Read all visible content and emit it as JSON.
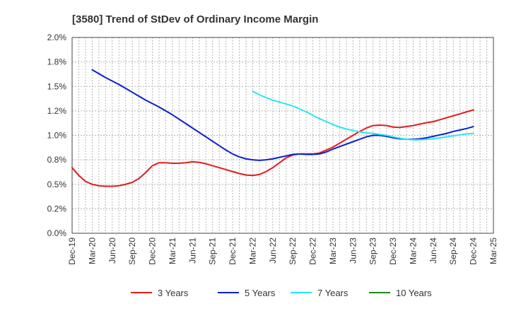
{
  "chart_data": {
    "type": "line",
    "title": "[3580]  Trend of StDev of Ordinary Income Margin",
    "xlabel": "",
    "ylabel": "",
    "x_tick_labels": [
      "Dec-19",
      "Mar-20",
      "Jun-20",
      "Sep-20",
      "Dec-20",
      "Mar-21",
      "Jun-21",
      "Sep-21",
      "Dec-21",
      "Mar-22",
      "Jun-22",
      "Sep-22",
      "Dec-22",
      "Mar-23",
      "Jun-23",
      "Sep-23",
      "Dec-23",
      "Mar-24",
      "Jun-24",
      "Sep-24",
      "Dec-24",
      "Mar-25"
    ],
    "y_tick_labels": [
      "0.0%",
      "0.2%",
      "0.5%",
      "0.8%",
      "1.0%",
      "1.2%",
      "1.5%",
      "1.8%",
      "2.0%"
    ],
    "ylim": [
      0,
      2.0
    ],
    "grid": true,
    "legend_position": "bottom",
    "series": [
      {
        "name": "3 Years",
        "color": "#e31a1c",
        "points": [
          [
            "Dec-19",
            0.67
          ],
          [
            "Jan-20",
            0.59
          ],
          [
            "Feb-20",
            0.53
          ],
          [
            "Mar-20",
            0.5
          ],
          [
            "Apr-20",
            0.485
          ],
          [
            "May-20",
            0.48
          ],
          [
            "Jun-20",
            0.48
          ],
          [
            "Jul-20",
            0.485
          ],
          [
            "Aug-20",
            0.5
          ],
          [
            "Sep-20",
            0.52
          ],
          [
            "Oct-20",
            0.56
          ],
          [
            "Nov-20",
            0.62
          ],
          [
            "Dec-20",
            0.69
          ],
          [
            "Jan-21",
            0.72
          ],
          [
            "Feb-21",
            0.72
          ],
          [
            "Mar-21",
            0.715
          ],
          [
            "Apr-21",
            0.715
          ],
          [
            "May-21",
            0.72
          ],
          [
            "Jun-21",
            0.73
          ],
          [
            "Jul-21",
            0.725
          ],
          [
            "Aug-21",
            0.71
          ],
          [
            "Sep-21",
            0.69
          ],
          [
            "Oct-21",
            0.67
          ],
          [
            "Nov-21",
            0.65
          ],
          [
            "Dec-21",
            0.63
          ],
          [
            "Jan-22",
            0.61
          ],
          [
            "Feb-22",
            0.595
          ],
          [
            "Mar-22",
            0.59
          ],
          [
            "Apr-22",
            0.6
          ],
          [
            "May-22",
            0.63
          ],
          [
            "Jun-22",
            0.67
          ],
          [
            "Jul-22",
            0.72
          ],
          [
            "Aug-22",
            0.77
          ],
          [
            "Sep-22",
            0.8
          ],
          [
            "Oct-22",
            0.81
          ],
          [
            "Nov-22",
            0.81
          ],
          [
            "Dec-22",
            0.81
          ],
          [
            "Jan-23",
            0.82
          ],
          [
            "Feb-23",
            0.85
          ],
          [
            "Mar-23",
            0.88
          ],
          [
            "Apr-23",
            0.92
          ],
          [
            "May-23",
            0.96
          ],
          [
            "Jun-23",
            1.0
          ],
          [
            "Jul-23",
            1.04
          ],
          [
            "Aug-23",
            1.075
          ],
          [
            "Sep-23",
            1.1
          ],
          [
            "Oct-23",
            1.105
          ],
          [
            "Nov-23",
            1.1
          ],
          [
            "Dec-23",
            1.085
          ],
          [
            "Jan-24",
            1.08
          ],
          [
            "Feb-24",
            1.09
          ],
          [
            "Mar-24",
            1.1
          ],
          [
            "Apr-24",
            1.115
          ],
          [
            "May-24",
            1.13
          ],
          [
            "Jun-24",
            1.14
          ],
          [
            "Jul-24",
            1.16
          ],
          [
            "Aug-24",
            1.18
          ],
          [
            "Sep-24",
            1.2
          ],
          [
            "Oct-24",
            1.22
          ],
          [
            "Nov-24",
            1.24
          ],
          [
            "Dec-24",
            1.26
          ]
        ]
      },
      {
        "name": "5 Years",
        "color": "#0a1fcc",
        "points": [
          [
            "Mar-20",
            1.67
          ],
          [
            "Apr-20",
            1.63
          ],
          [
            "May-20",
            1.59
          ],
          [
            "Jun-20",
            1.555
          ],
          [
            "Jul-20",
            1.52
          ],
          [
            "Aug-20",
            1.48
          ],
          [
            "Sep-20",
            1.44
          ],
          [
            "Oct-20",
            1.4
          ],
          [
            "Nov-20",
            1.36
          ],
          [
            "Dec-20",
            1.325
          ],
          [
            "Jan-21",
            1.29
          ],
          [
            "Feb-21",
            1.25
          ],
          [
            "Mar-21",
            1.21
          ],
          [
            "Apr-21",
            1.165
          ],
          [
            "May-21",
            1.12
          ],
          [
            "Jun-21",
            1.075
          ],
          [
            "Jul-21",
            1.03
          ],
          [
            "Aug-21",
            0.985
          ],
          [
            "Sep-21",
            0.94
          ],
          [
            "Oct-21",
            0.895
          ],
          [
            "Nov-21",
            0.85
          ],
          [
            "Dec-21",
            0.81
          ],
          [
            "Jan-22",
            0.78
          ],
          [
            "Feb-22",
            0.76
          ],
          [
            "Mar-22",
            0.75
          ],
          [
            "Apr-22",
            0.745
          ],
          [
            "May-22",
            0.75
          ],
          [
            "Jun-22",
            0.76
          ],
          [
            "Jul-22",
            0.775
          ],
          [
            "Aug-22",
            0.79
          ],
          [
            "Sep-22",
            0.805
          ],
          [
            "Oct-22",
            0.81
          ],
          [
            "Nov-22",
            0.805
          ],
          [
            "Dec-22",
            0.805
          ],
          [
            "Jan-23",
            0.81
          ],
          [
            "Feb-23",
            0.83
          ],
          [
            "Mar-23",
            0.86
          ],
          [
            "Apr-23",
            0.885
          ],
          [
            "May-23",
            0.91
          ],
          [
            "Jun-23",
            0.935
          ],
          [
            "Jul-23",
            0.96
          ],
          [
            "Aug-23",
            0.985
          ],
          [
            "Sep-23",
            1.0
          ],
          [
            "Oct-23",
            1.0
          ],
          [
            "Nov-23",
            0.99
          ],
          [
            "Dec-23",
            0.975
          ],
          [
            "Jan-24",
            0.965
          ],
          [
            "Feb-24",
            0.96
          ],
          [
            "Mar-24",
            0.96
          ],
          [
            "Apr-24",
            0.965
          ],
          [
            "May-24",
            0.975
          ],
          [
            "Jun-24",
            0.99
          ],
          [
            "Jul-24",
            1.005
          ],
          [
            "Aug-24",
            1.02
          ],
          [
            "Sep-24",
            1.04
          ],
          [
            "Oct-24",
            1.055
          ],
          [
            "Nov-24",
            1.07
          ],
          [
            "Dec-24",
            1.09
          ]
        ]
      },
      {
        "name": "7 Years",
        "color": "#27e6f0",
        "points": [
          [
            "Mar-22",
            1.45
          ],
          [
            "Apr-22",
            1.415
          ],
          [
            "May-22",
            1.385
          ],
          [
            "Jun-22",
            1.36
          ],
          [
            "Jul-22",
            1.34
          ],
          [
            "Aug-22",
            1.32
          ],
          [
            "Sep-22",
            1.3
          ],
          [
            "Oct-22",
            1.27
          ],
          [
            "Nov-22",
            1.24
          ],
          [
            "Dec-22",
            1.205
          ],
          [
            "Jan-23",
            1.17
          ],
          [
            "Feb-23",
            1.14
          ],
          [
            "Mar-23",
            1.11
          ],
          [
            "Apr-23",
            1.085
          ],
          [
            "May-23",
            1.065
          ],
          [
            "Jun-23",
            1.05
          ],
          [
            "Jul-23",
            1.035
          ],
          [
            "Aug-23",
            1.025
          ],
          [
            "Sep-23",
            1.02
          ],
          [
            "Oct-23",
            1.01
          ],
          [
            "Nov-23",
            1.0
          ],
          [
            "Dec-23",
            0.985
          ],
          [
            "Jan-24",
            0.97
          ],
          [
            "Feb-24",
            0.96
          ],
          [
            "Mar-24",
            0.955
          ],
          [
            "Apr-24",
            0.955
          ],
          [
            "May-24",
            0.96
          ],
          [
            "Jun-24",
            0.965
          ],
          [
            "Jul-24",
            0.975
          ],
          [
            "Aug-24",
            0.985
          ],
          [
            "Sep-24",
            0.995
          ],
          [
            "Oct-24",
            1.005
          ],
          [
            "Nov-24",
            1.015
          ],
          [
            "Dec-24",
            1.02
          ]
        ]
      },
      {
        "name": "10 Years",
        "color": "#1a8a1a",
        "points": []
      }
    ]
  }
}
